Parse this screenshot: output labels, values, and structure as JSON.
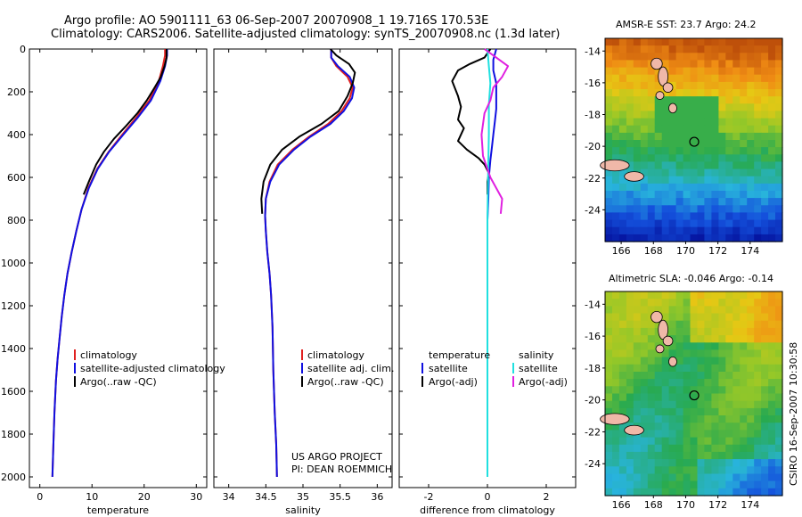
{
  "header": {
    "line1": "Argo profile: AO 5901111_63 06-Sep-2007 20070908_1 19.716S 170.53E",
    "line2": "Climatology: CARS2006. Satellite-adjusted climatology: synTS_20070908.nc (1.3d later)"
  },
  "colors": {
    "climatology": "#e02020",
    "satellite": "#1010e0",
    "argo": "#000000",
    "salinity_satellite": "#20e0e0",
    "salinity_argo": "#e020e0"
  },
  "credit": {
    "project": "US ARGO PROJECT",
    "pi": "PI: DEAN ROEMMICH",
    "stamp": "CSIRO 16-Sep-2007 10:30:58"
  },
  "chart_data": [
    {
      "type": "line",
      "name": "temperature-profile",
      "xlabel": "temperature",
      "xlim": [
        -2,
        32
      ],
      "xticks": [
        0,
        10,
        20,
        30
      ],
      "ylim": [
        2050,
        0
      ],
      "yticks": [
        0,
        200,
        400,
        600,
        800,
        1000,
        1200,
        1400,
        1600,
        1800,
        2000
      ],
      "legend": [
        "climatology",
        "satellite-adjusted climatology",
        "Argo(..raw -QC)"
      ],
      "series": [
        {
          "name": "climatology",
          "color": "red",
          "points": [
            [
              24.0,
              0
            ],
            [
              24.0,
              30
            ],
            [
              23.6,
              80
            ],
            [
              22.8,
              150
            ],
            [
              21.0,
              240
            ],
            [
              18.5,
              320
            ],
            [
              15.8,
              400
            ],
            [
              13.2,
              480
            ],
            [
              11.0,
              560
            ],
            [
              9.3,
              650
            ],
            [
              8.0,
              750
            ],
            [
              7.0,
              850
            ],
            [
              6.1,
              950
            ],
            [
              5.3,
              1050
            ],
            [
              4.7,
              1150
            ],
            [
              4.2,
              1250
            ],
            [
              3.8,
              1350
            ],
            [
              3.4,
              1450
            ],
            [
              3.1,
              1550
            ],
            [
              2.8,
              1700
            ],
            [
              2.6,
              1850
            ],
            [
              2.4,
              2000
            ]
          ]
        },
        {
          "name": "satellite",
          "color": "blue",
          "points": [
            [
              24.4,
              0
            ],
            [
              24.4,
              30
            ],
            [
              24.0,
              80
            ],
            [
              23.1,
              150
            ],
            [
              21.3,
              240
            ],
            [
              18.8,
              320
            ],
            [
              16.0,
              400
            ],
            [
              13.3,
              480
            ],
            [
              11.1,
              560
            ],
            [
              9.4,
              650
            ],
            [
              8.0,
              750
            ],
            [
              7.0,
              850
            ],
            [
              6.1,
              950
            ],
            [
              5.3,
              1050
            ],
            [
              4.7,
              1150
            ],
            [
              4.2,
              1250
            ],
            [
              3.8,
              1350
            ],
            [
              3.4,
              1450
            ],
            [
              3.1,
              1550
            ],
            [
              2.8,
              1700
            ],
            [
              2.6,
              1850
            ],
            [
              2.4,
              2000
            ]
          ]
        },
        {
          "name": "argo",
          "color": "black",
          "points": [
            [
              24.3,
              0
            ],
            [
              24.3,
              40
            ],
            [
              23.9,
              80
            ],
            [
              23.2,
              130
            ],
            [
              22.0,
              180
            ],
            [
              20.5,
              240
            ],
            [
              18.7,
              300
            ],
            [
              16.5,
              360
            ],
            [
              14.2,
              420
            ],
            [
              12.3,
              480
            ],
            [
              10.8,
              540
            ],
            [
              9.4,
              620
            ],
            [
              8.4,
              680
            ]
          ]
        }
      ]
    },
    {
      "type": "line",
      "name": "salinity-profile",
      "xlabel": "salinity",
      "xlim": [
        33.8,
        36.2
      ],
      "xticks": [
        34,
        34.5,
        35,
        35.5,
        36
      ],
      "ylim": [
        2050,
        0
      ],
      "legend": [
        "climatology",
        "satellite adj. clim.",
        "Argo(..raw -QC)"
      ],
      "series": [
        {
          "name": "climatology",
          "color": "red",
          "points": [
            [
              35.38,
              0
            ],
            [
              35.38,
              40
            ],
            [
              35.45,
              80
            ],
            [
              35.6,
              130
            ],
            [
              35.67,
              180
            ],
            [
              35.63,
              230
            ],
            [
              35.52,
              290
            ],
            [
              35.34,
              350
            ],
            [
              35.08,
              410
            ],
            [
              34.86,
              470
            ],
            [
              34.66,
              540
            ],
            [
              34.55,
              620
            ],
            [
              34.5,
              700
            ],
            [
              34.49,
              780
            ],
            [
              34.5,
              850
            ],
            [
              34.52,
              950
            ],
            [
              34.55,
              1050
            ],
            [
              34.57,
              1150
            ],
            [
              34.59,
              1300
            ],
            [
              34.6,
              1500
            ],
            [
              34.62,
              1700
            ],
            [
              34.64,
              1850
            ],
            [
              34.65,
              2000
            ]
          ]
        },
        {
          "name": "satellite",
          "color": "blue",
          "points": [
            [
              35.38,
              0
            ],
            [
              35.38,
              40
            ],
            [
              35.47,
              80
            ],
            [
              35.63,
              130
            ],
            [
              35.69,
              180
            ],
            [
              35.66,
              230
            ],
            [
              35.55,
              290
            ],
            [
              35.37,
              350
            ],
            [
              35.1,
              410
            ],
            [
              34.88,
              470
            ],
            [
              34.68,
              540
            ],
            [
              34.56,
              620
            ],
            [
              34.5,
              700
            ],
            [
              34.49,
              780
            ],
            [
              34.5,
              850
            ],
            [
              34.52,
              950
            ],
            [
              34.55,
              1050
            ],
            [
              34.57,
              1150
            ],
            [
              34.59,
              1300
            ],
            [
              34.6,
              1500
            ],
            [
              34.62,
              1700
            ],
            [
              34.64,
              1850
            ],
            [
              34.65,
              2000
            ]
          ]
        },
        {
          "name": "argo",
          "color": "black",
          "points": [
            [
              35.37,
              0
            ],
            [
              35.45,
              30
            ],
            [
              35.62,
              70
            ],
            [
              35.7,
              110
            ],
            [
              35.67,
              160
            ],
            [
              35.6,
              220
            ],
            [
              35.48,
              290
            ],
            [
              35.25,
              350
            ],
            [
              34.95,
              410
            ],
            [
              34.72,
              470
            ],
            [
              34.56,
              540
            ],
            [
              34.47,
              620
            ],
            [
              34.44,
              700
            ],
            [
              34.45,
              770
            ]
          ]
        }
      ]
    },
    {
      "type": "line",
      "name": "difference-profile",
      "xlabel": "difference from climatology",
      "xlim": [
        -3,
        3
      ],
      "xticks": [
        -2,
        0,
        2
      ],
      "ylim": [
        2050,
        0
      ],
      "legend_headers": [
        "temperature",
        "salinity"
      ],
      "legend": [
        "satellite",
        "Argo(-adj)",
        "satellite",
        "Argo(-adj)"
      ],
      "series": [
        {
          "name": "temperature satellite",
          "color": "blue",
          "points": [
            [
              0.3,
              0
            ],
            [
              0.2,
              50
            ],
            [
              0.2,
              100
            ],
            [
              0.3,
              160
            ],
            [
              0.3,
              220
            ],
            [
              0.3,
              280
            ],
            [
              0.25,
              340
            ],
            [
              0.2,
              400
            ],
            [
              0.15,
              460
            ],
            [
              0.1,
              520
            ],
            [
              0.05,
              600
            ],
            [
              0.03,
              700
            ],
            [
              0.0,
              800
            ],
            [
              0.0,
              2000
            ]
          ]
        },
        {
          "name": "temperature Argo(-adj)",
          "color": "black",
          "points": [
            [
              0.1,
              0
            ],
            [
              -0.1,
              40
            ],
            [
              -0.6,
              70
            ],
            [
              -1.0,
              100
            ],
            [
              -1.2,
              150
            ],
            [
              -1.0,
              220
            ],
            [
              -0.9,
              270
            ],
            [
              -1.0,
              330
            ],
            [
              -0.8,
              370
            ],
            [
              -1.0,
              430
            ],
            [
              -0.7,
              470
            ],
            [
              -0.3,
              510
            ],
            [
              -0.1,
              540
            ],
            [
              0.05,
              580
            ],
            [
              0.0,
              620
            ],
            [
              0.0,
              680
            ]
          ]
        },
        {
          "name": "salinity satellite",
          "color": "cyan",
          "points": [
            [
              0.0,
              0
            ],
            [
              0.05,
              80
            ],
            [
              0.1,
              160
            ],
            [
              0.05,
              260
            ],
            [
              0.05,
              400
            ],
            [
              0.02,
              600
            ],
            [
              0.0,
              800
            ],
            [
              0.0,
              2000
            ]
          ]
        },
        {
          "name": "salinity Argo(-adj)",
          "color": "magenta",
          "points": [
            [
              -0.1,
              0
            ],
            [
              0.3,
              40
            ],
            [
              0.7,
              80
            ],
            [
              0.5,
              130
            ],
            [
              0.2,
              180
            ],
            [
              0.1,
              240
            ],
            [
              -0.1,
              300
            ],
            [
              -0.2,
              400
            ],
            [
              -0.15,
              500
            ],
            [
              0.1,
              600
            ],
            [
              0.5,
              700
            ],
            [
              0.45,
              770
            ]
          ]
        }
      ]
    },
    {
      "type": "heatmap",
      "name": "sst-map",
      "title": "AMSR-E SST: 23.7 Argo: 24.2",
      "xticks": [
        166,
        168,
        170,
        172,
        174
      ],
      "yticks": [
        -14,
        -16,
        -18,
        -20,
        -22,
        -24
      ],
      "xlim": [
        165,
        176
      ],
      "ylim": [
        -26,
        -13.2
      ],
      "float_position": [
        170.53,
        -19.716
      ]
    },
    {
      "type": "heatmap",
      "name": "sla-map",
      "title": "Altimetric SLA: -0.046 Argo: -0.14",
      "xticks": [
        166,
        168,
        170,
        172,
        174
      ],
      "yticks": [
        -14,
        -16,
        -18,
        -20,
        -22,
        -24
      ],
      "xlim": [
        165,
        176
      ],
      "ylim": [
        -26,
        -13.2
      ],
      "float_position": [
        170.53,
        -19.716
      ]
    }
  ]
}
